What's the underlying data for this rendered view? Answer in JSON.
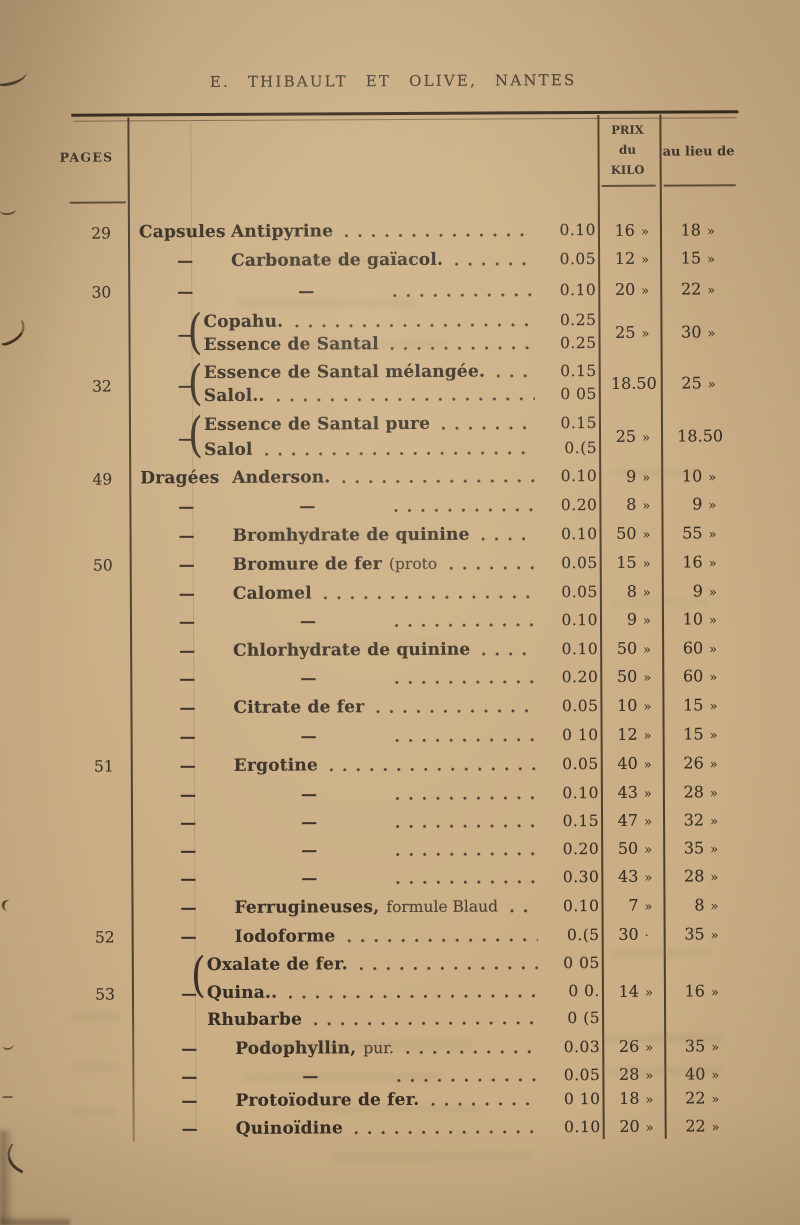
{
  "page_title": "E. THIBAULT ET OLIVE, NANTES",
  "table": {
    "col_pages": "PAGES",
    "col_prix_kilo": [
      "PRIX",
      "du",
      "KILO"
    ],
    "col_au_lieu": "au lieu de",
    "dash_glyph": "—",
    "brace_glyph": "(",
    "rows": [
      {
        "kind": "item",
        "page": "29",
        "lead": "Capsules",
        "name": "Antipyrine",
        "price": "0.10",
        "kilo": "16",
        "ku": "»",
        "lieu": "18",
        "lu": "»"
      },
      {
        "kind": "item",
        "dash": true,
        "name": "Carbonate de gaïacol.",
        "price": "0.05",
        "kilo": "12",
        "ku": "»",
        "lieu": "15",
        "lu": "»"
      },
      {
        "kind": "dashrow",
        "page": "30",
        "dash": true,
        "price": "0.10",
        "kilo": "20",
        "ku": "»",
        "lieu": "22",
        "lu": "»"
      },
      {
        "kind": "group",
        "dash": true,
        "lines": [
          {
            "name": "Copahu.",
            "price": "0.25"
          },
          {
            "name": "Essence de Santal",
            "price": "0.25"
          }
        ],
        "kilo": "25",
        "ku": "»",
        "lieu": "30",
        "lu": "»"
      },
      {
        "kind": "group",
        "page": "32",
        "dash": true,
        "lines": [
          {
            "name": "Essence de Santal mélangée.",
            "price": "0.15"
          },
          {
            "name": "Salol..",
            "price": "0 05"
          }
        ],
        "kilo": "18.50",
        "ku": "",
        "lieu": "25",
        "lu": "»"
      },
      {
        "kind": "group",
        "dash": true,
        "lines": [
          {
            "name": "Essence de Santal pure",
            "price": "0.15"
          },
          {
            "name": "Salol",
            "price": "0.(5"
          }
        ],
        "kilo": "25",
        "ku": "»",
        "lieu": "18.50",
        "lu": ""
      },
      {
        "kind": "item",
        "page": "49",
        "lead": "Dragées",
        "name": "Anderson.",
        "price": "0.10",
        "kilo": "9",
        "ku": "»",
        "lieu": "10",
        "lu": "»"
      },
      {
        "kind": "dashrow",
        "dash": true,
        "price": "0.20",
        "kilo": "8",
        "ku": "»",
        "lieu": "9",
        "lu": "»"
      },
      {
        "kind": "item",
        "dash": true,
        "name": "Bromhydrate de quinine",
        "price": "0.10",
        "kilo": "50",
        "ku": "»",
        "lieu": "55",
        "lu": "»"
      },
      {
        "kind": "item",
        "page": "50",
        "dash": true,
        "name": "Bromure de fer",
        "name_note": "(proto",
        "price": "0.05",
        "kilo": "15",
        "ku": "»",
        "lieu": "16",
        "lu": "»"
      },
      {
        "kind": "item",
        "dash": true,
        "name": "Calomel",
        "price": "0.05",
        "kilo": "8",
        "ku": "»",
        "lieu": "9",
        "lu": "»"
      },
      {
        "kind": "dashrow",
        "dash": true,
        "price": "0.10",
        "kilo": "9",
        "ku": "»",
        "lieu": "10",
        "lu": "»"
      },
      {
        "kind": "item",
        "dash": true,
        "name": "Chlorhydrate de quinine",
        "price": "0.10",
        "kilo": "50",
        "ku": "»",
        "lieu": "60",
        "lu": "»"
      },
      {
        "kind": "dashrow",
        "dash": true,
        "price": "0.20",
        "kilo": "50",
        "ku": "»",
        "lieu": "60",
        "lu": "»"
      },
      {
        "kind": "item",
        "dash": true,
        "name": "Citrate de fer",
        "price": "0.05",
        "kilo": "10",
        "ku": "»",
        "lieu": "15",
        "lu": "»"
      },
      {
        "kind": "dashrow",
        "dash": true,
        "price": "0 10",
        "kilo": "12",
        "ku": "»",
        "lieu": "15",
        "lu": "»"
      },
      {
        "kind": "item",
        "page": "51",
        "dash": true,
        "name": "Ergotine",
        "price": "0.05",
        "kilo": "40",
        "ku": "»",
        "lieu": "26",
        "lu": "»"
      },
      {
        "kind": "dashrow",
        "dash": true,
        "price": "0.10",
        "kilo": "43",
        "ku": "»",
        "lieu": "28",
        "lu": "»"
      },
      {
        "kind": "dashrow",
        "dash": true,
        "price": "0.15",
        "kilo": "47",
        "ku": "»",
        "lieu": "32",
        "lu": "»"
      },
      {
        "kind": "dashrow",
        "dash": true,
        "price": "0.20",
        "kilo": "50",
        "ku": "»",
        "lieu": "35",
        "lu": "»"
      },
      {
        "kind": "dashrow",
        "dash": true,
        "price": "0.30",
        "kilo": "43",
        "ku": "»",
        "lieu": "28",
        "lu": "»"
      },
      {
        "kind": "item",
        "dash": true,
        "name": "Ferrugineuses,",
        "name_note": "formule Blaud",
        "price": "0.10",
        "kilo": "7",
        "ku": "»",
        "lieu": "8",
        "lu": "»"
      },
      {
        "kind": "item",
        "page": "52",
        "dash": true,
        "name": "Iodoforme",
        "price": "0.(5",
        "kilo": "30",
        "ku": "·",
        "lieu": "35",
        "lu": "»"
      },
      {
        "kind": "group",
        "page": "53",
        "dash": true,
        "lines": [
          {
            "name": "Oxalate de fer.",
            "price": "0 05"
          },
          {
            "name": "Quina..",
            "price": "0 0."
          },
          {
            "name": "Rhubarbe",
            "price": "0 (5"
          }
        ],
        "kilo": "14",
        "ku": "»",
        "lieu": "16",
        "lu": "»"
      },
      {
        "kind": "item",
        "dash": true,
        "name": "Podophyllin,",
        "name_note": "pur.",
        "price": "0.03",
        "kilo": "26",
        "ku": "»",
        "lieu": "35",
        "lu": "»"
      },
      {
        "kind": "dashrow",
        "dash": true,
        "price": "0.05",
        "kilo": "28",
        "ku": "»",
        "lieu": "40",
        "lu": "»"
      },
      {
        "kind": "item",
        "dash": true,
        "name": "Protoïodure de fer.",
        "price": "0 10",
        "kilo": "18",
        "ku": "»",
        "lieu": "22",
        "lu": "»"
      },
      {
        "kind": "item",
        "dash": true,
        "name": "Quinoïdine",
        "price": "0.10",
        "kilo": "20",
        "ku": "»",
        "lieu": "22",
        "lu": "»"
      }
    ]
  }
}
